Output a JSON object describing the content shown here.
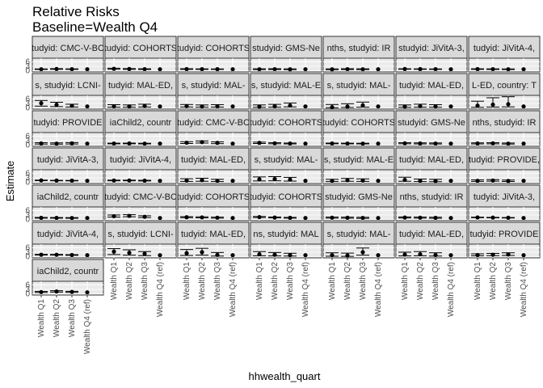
{
  "chart_data": {
    "type": "scatter",
    "title": "Relative Risks",
    "subtitle": "Baseline=Wealth Q4",
    "xlabel": "hhwealth_quart",
    "ylabel": "Estimate",
    "categories": [
      "Wealth Q1",
      "Wealth Q2",
      "Wealth Q3",
      "Wealth Q4 (ref)"
    ],
    "y_ticks": [
      0,
      3,
      6
    ],
    "ylim": [
      -0.8,
      8.4
    ],
    "grid": true,
    "facets": [
      {
        "label": "tudyid: CMC-V-BC",
        "values": [
          1.0,
          1.15,
          1.05,
          1.0
        ],
        "lower": [
          0.85,
          0.95,
          0.9,
          1.0
        ],
        "upper": [
          1.2,
          1.4,
          1.25,
          1.0
        ]
      },
      {
        "label": "tudyid: COHORTS",
        "values": [
          1.3,
          1.15,
          1.05,
          1.0
        ],
        "lower": [
          1.0,
          0.9,
          0.85,
          1.0
        ],
        "upper": [
          1.7,
          1.45,
          1.3,
          1.0
        ]
      },
      {
        "label": "tudyid: COHORTS",
        "values": [
          1.1,
          1.05,
          1.02,
          1.0
        ],
        "lower": [
          0.9,
          0.9,
          0.88,
          1.0
        ],
        "upper": [
          1.35,
          1.25,
          1.2,
          1.0
        ]
      },
      {
        "label": "studyid: GMS-Ne",
        "values": [
          1.0,
          1.05,
          0.95,
          1.0
        ],
        "lower": [
          0.75,
          0.8,
          0.7,
          1.0
        ],
        "upper": [
          1.3,
          1.35,
          1.25,
          1.0
        ]
      },
      {
        "label": "nths, studyid: IR",
        "values": [
          0.95,
          1.05,
          1.0,
          1.0
        ],
        "lower": [
          0.7,
          0.8,
          0.75,
          1.0
        ],
        "upper": [
          1.25,
          1.35,
          1.3,
          1.0
        ]
      },
      {
        "label": "studyid: JiVitA-3,",
        "values": [
          1.15,
          1.1,
          1.05,
          1.0
        ],
        "lower": [
          1.0,
          0.95,
          0.9,
          1.0
        ],
        "upper": [
          1.3,
          1.25,
          1.2,
          1.0
        ]
      },
      {
        "label": "tudyid: JiVitA-4,",
        "values": [
          1.1,
          1.05,
          1.0,
          1.0
        ],
        "lower": [
          0.9,
          0.85,
          0.8,
          1.0
        ],
        "upper": [
          1.3,
          1.25,
          1.2,
          1.0
        ]
      },
      {
        "label": "s, studyid: LCNI-",
        "values": [
          3.2,
          2.1,
          1.4,
          1.0
        ],
        "lower": [
          1.2,
          0.9,
          0.6,
          1.0
        ],
        "upper": [
          5.0,
          3.8,
          2.5,
          1.0
        ]
      },
      {
        "label": "tudyid: MAL-ED,",
        "values": [
          1.1,
          1.0,
          1.3,
          1.0
        ],
        "lower": [
          0.5,
          0.45,
          0.6,
          1.0
        ],
        "upper": [
          2.2,
          2.0,
          2.5,
          1.0
        ]
      },
      {
        "label": "s, studyid: MAL-",
        "values": [
          1.2,
          1.0,
          1.1,
          1.0
        ],
        "lower": [
          0.6,
          0.5,
          0.55,
          1.0
        ],
        "upper": [
          2.3,
          2.0,
          2.2,
          1.0
        ]
      },
      {
        "label": "s, studyid: MAL-E",
        "values": [
          0.9,
          1.1,
          1.6,
          1.0
        ],
        "lower": [
          0.4,
          0.5,
          0.7,
          1.0
        ],
        "upper": [
          2.0,
          2.4,
          3.3,
          1.0
        ]
      },
      {
        "label": "s, studyid: MAL-",
        "values": [
          0.5,
          0.9,
          1.7,
          1.0
        ],
        "lower": [
          0.1,
          0.3,
          0.5,
          1.0
        ],
        "upper": [
          2.3,
          2.8,
          3.9,
          1.0
        ]
      },
      {
        "label": "tudyid: MAL-ED,",
        "values": [
          0.9,
          1.2,
          1.0,
          1.0
        ],
        "lower": [
          0.4,
          0.5,
          0.45,
          1.0
        ],
        "upper": [
          2.0,
          2.5,
          2.2,
          1.0
        ]
      },
      {
        "label": "L-ED, country: T",
        "values": [
          1.5,
          2.2,
          2.5,
          1.0
        ],
        "lower": [
          0.4,
          0.6,
          0.7,
          1.0
        ],
        "upper": [
          4.5,
          6.8,
          7.5,
          1.0
        ]
      },
      {
        "label": "tudyid: PROVIDE",
        "values": [
          1.1,
          1.0,
          1.15,
          1.0
        ],
        "lower": [
          0.7,
          0.65,
          0.75,
          1.0
        ],
        "upper": [
          1.6,
          1.5,
          1.7,
          1.0
        ]
      },
      {
        "label": "iaChild2, countr",
        "values": [
          1.05,
          1.1,
          1.0,
          1.0
        ],
        "lower": [
          0.85,
          0.9,
          0.8,
          1.0
        ],
        "upper": [
          1.3,
          1.35,
          1.25,
          1.0
        ]
      },
      {
        "label": "tudyid: CMC-V-BC",
        "values": [
          1.6,
          2.0,
          1.5,
          1.0
        ],
        "lower": [
          1.1,
          1.4,
          1.0,
          1.0
        ],
        "upper": [
          2.3,
          2.8,
          2.2,
          1.0
        ]
      },
      {
        "label": "tudyid: COHORTS",
        "values": [
          1.5,
          1.2,
          1.05,
          1.0
        ],
        "lower": [
          1.1,
          0.9,
          0.8,
          1.0
        ],
        "upper": [
          2.0,
          1.6,
          1.4,
          1.0
        ]
      },
      {
        "label": "tudyid: COHORTS",
        "values": [
          1.1,
          1.05,
          1.0,
          1.0
        ],
        "lower": [
          0.9,
          0.85,
          0.8,
          1.0
        ],
        "upper": [
          1.35,
          1.3,
          1.25,
          1.0
        ]
      },
      {
        "label": "studyid: GMS-Ne",
        "values": [
          1.2,
          1.1,
          1.05,
          1.0
        ],
        "lower": [
          0.9,
          0.8,
          0.75,
          1.0
        ],
        "upper": [
          1.6,
          1.5,
          1.45,
          1.0
        ]
      },
      {
        "label": "nths, studyid: IR",
        "values": [
          1.1,
          1.2,
          1.0,
          1.0
        ],
        "lower": [
          0.8,
          0.85,
          0.7,
          1.0
        ],
        "upper": [
          1.5,
          1.6,
          1.4,
          1.0
        ]
      },
      {
        "label": "tudyid: JiVitA-3,",
        "values": [
          1.25,
          1.15,
          1.1,
          1.0
        ],
        "lower": [
          1.1,
          1.0,
          0.95,
          1.0
        ],
        "upper": [
          1.45,
          1.3,
          1.25,
          1.0
        ]
      },
      {
        "label": "tudyid: JiVitA-4,",
        "values": [
          1.2,
          1.2,
          1.1,
          1.0
        ],
        "lower": [
          1.0,
          1.0,
          0.9,
          1.0
        ],
        "upper": [
          1.45,
          1.45,
          1.35,
          1.0
        ]
      },
      {
        "label": "tudyid: MAL-ED,",
        "values": [
          1.2,
          1.4,
          1.0,
          1.0
        ],
        "lower": [
          0.6,
          0.7,
          0.5,
          1.0
        ],
        "upper": [
          2.4,
          2.7,
          2.0,
          1.0
        ]
      },
      {
        "label": "s, studyid: MAL-",
        "values": [
          2.0,
          2.2,
          1.8,
          1.0
        ],
        "lower": [
          0.9,
          1.0,
          0.8,
          1.0
        ],
        "upper": [
          3.6,
          3.8,
          3.3,
          1.0
        ]
      },
      {
        "label": "s, studyid: MAL-E",
        "values": [
          1.0,
          1.4,
          1.2,
          1.0
        ],
        "lower": [
          0.5,
          0.7,
          0.6,
          1.0
        ],
        "upper": [
          2.0,
          2.6,
          2.3,
          1.0
        ]
      },
      {
        "label": "tudyid: MAL-ED,",
        "values": [
          1.6,
          1.0,
          0.9,
          1.0
        ],
        "lower": [
          0.7,
          0.5,
          0.4,
          1.0
        ],
        "upper": [
          3.4,
          2.2,
          2.0,
          1.0
        ]
      },
      {
        "label": "tudyid: PROVIDE,",
        "values": [
          1.0,
          1.2,
          0.9,
          1.0
        ],
        "lower": [
          0.6,
          0.75,
          0.55,
          1.0
        ],
        "upper": [
          1.6,
          1.8,
          1.5,
          1.0
        ]
      },
      {
        "label": "iaChild2, countr",
        "values": [
          1.1,
          1.05,
          1.0,
          1.0
        ],
        "lower": [
          0.9,
          0.85,
          0.8,
          1.0
        ],
        "upper": [
          1.35,
          1.3,
          1.25,
          1.0
        ]
      },
      {
        "label": "tudyid: CMC-V-BC",
        "values": [
          2.2,
          2.4,
          1.8,
          1.0
        ],
        "lower": [
          1.6,
          1.8,
          1.3,
          1.0
        ],
        "upper": [
          3.0,
          3.2,
          2.5,
          1.0
        ]
      },
      {
        "label": "tudyid: COHORTS",
        "values": [
          1.5,
          1.4,
          1.2,
          1.0
        ],
        "lower": [
          1.2,
          1.1,
          0.9,
          1.0
        ],
        "upper": [
          1.9,
          1.8,
          1.55,
          1.0
        ]
      },
      {
        "label": "tudyid: COHORTS",
        "values": [
          1.6,
          1.3,
          1.1,
          1.0
        ],
        "lower": [
          1.3,
          1.05,
          0.9,
          1.0
        ],
        "upper": [
          2.0,
          1.65,
          1.4,
          1.0
        ]
      },
      {
        "label": "studyid: GMS-Ne",
        "values": [
          1.2,
          1.15,
          1.05,
          1.0
        ],
        "lower": [
          0.9,
          0.85,
          0.75,
          1.0
        ],
        "upper": [
          1.6,
          1.55,
          1.45,
          1.0
        ]
      },
      {
        "label": "nths, studyid: IR",
        "values": [
          1.3,
          1.2,
          1.1,
          1.0
        ],
        "lower": [
          1.0,
          0.9,
          0.8,
          1.0
        ],
        "upper": [
          1.7,
          1.6,
          1.5,
          1.0
        ]
      },
      {
        "label": "tudyid: JiVitA-3,",
        "values": [
          1.35,
          1.25,
          1.15,
          1.0
        ],
        "lower": [
          1.2,
          1.1,
          1.0,
          1.0
        ],
        "upper": [
          1.55,
          1.4,
          1.3,
          1.0
        ]
      },
      {
        "label": "tudyid: JiVitA-4,",
        "values": [
          1.3,
          1.25,
          1.1,
          1.0
        ],
        "lower": [
          1.05,
          1.0,
          0.9,
          1.0
        ],
        "upper": [
          1.6,
          1.55,
          1.35,
          1.0
        ]
      },
      {
        "label": "s, studyid: LCNI-",
        "values": [
          3.4,
          2.6,
          1.9,
          1.0
        ],
        "lower": [
          1.4,
          1.0,
          0.7,
          1.0
        ],
        "upper": [
          5.4,
          4.6,
          3.4,
          1.0
        ]
      },
      {
        "label": "tudyid: MAL-ED,",
        "values": [
          2.3,
          3.0,
          1.2,
          1.0
        ],
        "lower": [
          0.8,
          1.0,
          0.4,
          1.0
        ],
        "upper": [
          4.8,
          5.6,
          2.8,
          1.0
        ]
      },
      {
        "label": "ns, studyid: MAL",
        "values": [
          1.6,
          1.3,
          1.0,
          1.0
        ],
        "lower": [
          0.6,
          0.5,
          0.4,
          1.0
        ],
        "upper": [
          3.4,
          2.8,
          2.3,
          1.0
        ]
      },
      {
        "label": "s, studyid: MAL-",
        "values": [
          1.0,
          0.8,
          3.0,
          1.0
        ],
        "lower": [
          0.3,
          0.2,
          1.0,
          1.0
        ],
        "upper": [
          2.6,
          2.4,
          5.8,
          1.0
        ]
      },
      {
        "label": "tudyid: MAL-ED,",
        "values": [
          1.4,
          1.6,
          1.1,
          1.0
        ],
        "lower": [
          0.5,
          0.6,
          0.4,
          1.0
        ],
        "upper": [
          3.0,
          3.4,
          2.6,
          1.0
        ]
      },
      {
        "label": "tudyid: PROVIDE",
        "values": [
          1.1,
          1.3,
          1.5,
          1.0
        ],
        "lower": [
          0.6,
          0.7,
          0.8,
          1.0
        ],
        "upper": [
          1.9,
          2.2,
          2.6,
          1.0
        ]
      },
      {
        "label": "iaChild2, countr",
        "values": [
          1.2,
          1.6,
          1.3,
          1.0
        ],
        "lower": [
          0.9,
          1.2,
          1.0,
          1.0
        ],
        "upper": [
          1.6,
          2.1,
          1.7,
          1.0
        ]
      }
    ]
  }
}
